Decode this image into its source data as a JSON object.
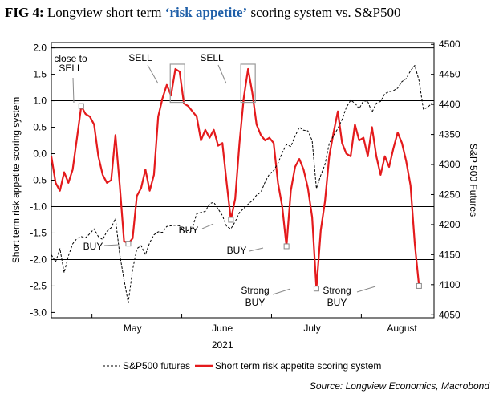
{
  "figure": {
    "number": "FIG 4:",
    "title_pre": "Longview short term ",
    "title_highlight": "‘risk appetite’",
    "title_post": " scoring system vs. S&P500",
    "source": "Source: Longview Economics, Macrobond"
  },
  "chart_data": {
    "type": "line",
    "title": "Longview short term ‘risk appetite’ scoring system vs. S&P500",
    "xlabel": "2021",
    "ylabel_left": "Short term risk appetite scoring system",
    "ylabel_right": "S&P 500 Futures",
    "x_unit": "trading day index (approx.)",
    "x_range": [
      0,
      86
    ],
    "x_tick_labels": [
      {
        "label": "May",
        "x": 19
      },
      {
        "label": "June",
        "x": 40
      },
      {
        "label": "July",
        "x": 61
      },
      {
        "label": "August",
        "x": 82
      }
    ],
    "y_left": {
      "range": [
        -3.1,
        2.1
      ],
      "ticks": [
        "2.0",
        "1.5",
        "1.0",
        "0.5",
        "0.0",
        "-0.5",
        "-1.0",
        "-1.5",
        "-2.0",
        "-2.5",
        "-3.0"
      ]
    },
    "y_right": {
      "range": [
        4045,
        4503
      ],
      "ticks": [
        "4500",
        "4450",
        "4400",
        "4350",
        "4300",
        "4250",
        "4200",
        "4150",
        "4100",
        "4050"
      ]
    },
    "reference_lines": [
      2.0,
      1.0,
      -1.0,
      -2.0
    ],
    "series": [
      {
        "name": "Short term risk appetite scoring system",
        "axis": "left",
        "color": "#e41a1c",
        "style": "solid",
        "points": [
          [
            0,
            -0.05
          ],
          [
            1,
            -0.55
          ],
          [
            2,
            -0.7
          ],
          [
            3,
            -0.35
          ],
          [
            4,
            -0.55
          ],
          [
            5,
            -0.3
          ],
          [
            6,
            0.3
          ],
          [
            7,
            0.9
          ],
          [
            8,
            0.75
          ],
          [
            9,
            0.7
          ],
          [
            10,
            0.55
          ],
          [
            11,
            -0.05
          ],
          [
            12,
            -0.4
          ],
          [
            13,
            -0.55
          ],
          [
            14,
            -0.5
          ],
          [
            15,
            0.35
          ],
          [
            16,
            -0.6
          ],
          [
            17,
            -1.65
          ],
          [
            18,
            -1.7
          ],
          [
            19,
            -1.6
          ],
          [
            20,
            -0.8
          ],
          [
            21,
            -0.65
          ],
          [
            22,
            -0.3
          ],
          [
            23,
            -0.7
          ],
          [
            24,
            -0.4
          ],
          [
            25,
            0.7
          ],
          [
            26,
            1.05
          ],
          [
            27,
            1.3
          ],
          [
            28,
            1.1
          ],
          [
            29,
            1.6
          ],
          [
            30,
            1.55
          ],
          [
            31,
            0.95
          ],
          [
            32,
            0.9
          ],
          [
            33,
            0.8
          ],
          [
            34,
            0.7
          ],
          [
            35,
            0.25
          ],
          [
            36,
            0.45
          ],
          [
            37,
            0.3
          ],
          [
            38,
            0.45
          ],
          [
            39,
            0.15
          ],
          [
            40,
            0.2
          ],
          [
            41,
            -0.55
          ],
          [
            42,
            -1.25
          ],
          [
            43,
            -0.85
          ],
          [
            44,
            0.2
          ],
          [
            45,
            1.05
          ],
          [
            46,
            1.6
          ],
          [
            47,
            1.15
          ],
          [
            48,
            0.55
          ],
          [
            49,
            0.35
          ],
          [
            50,
            0.25
          ],
          [
            51,
            0.3
          ],
          [
            52,
            0.2
          ],
          [
            53,
            -0.55
          ],
          [
            54,
            -1.0
          ],
          [
            55,
            -1.75
          ],
          [
            56,
            -0.7
          ],
          [
            57,
            -0.25
          ],
          [
            58,
            -0.1
          ],
          [
            59,
            -0.3
          ],
          [
            60,
            -0.65
          ],
          [
            61,
            -1.2
          ],
          [
            62,
            -2.55
          ],
          [
            63,
            -1.45
          ],
          [
            64,
            -0.9
          ],
          [
            65,
            -0.05
          ],
          [
            66,
            0.4
          ],
          [
            67,
            0.8
          ],
          [
            68,
            0.2
          ],
          [
            69,
            0.0
          ],
          [
            70,
            -0.05
          ],
          [
            71,
            0.55
          ],
          [
            72,
            0.25
          ],
          [
            73,
            0.3
          ],
          [
            74,
            -0.05
          ],
          [
            75,
            0.5
          ],
          [
            76,
            -0.05
          ],
          [
            77,
            -0.4
          ],
          [
            78,
            -0.05
          ],
          [
            79,
            -0.25
          ],
          [
            80,
            0.1
          ],
          [
            81,
            0.4
          ],
          [
            82,
            0.2
          ],
          [
            83,
            -0.15
          ],
          [
            84,
            -0.6
          ],
          [
            85,
            -1.7
          ],
          [
            86,
            -2.5
          ]
        ]
      },
      {
        "name": "S&P500 futures",
        "axis": "right",
        "color": "#000000",
        "style": "dashed",
        "points": [
          [
            0,
            4150
          ],
          [
            1,
            4138
          ],
          [
            2,
            4160
          ],
          [
            3,
            4120
          ],
          [
            4,
            4148
          ],
          [
            5,
            4168
          ],
          [
            6,
            4177
          ],
          [
            7,
            4180
          ],
          [
            8,
            4178
          ],
          [
            9,
            4185
          ],
          [
            10,
            4193
          ],
          [
            11,
            4180
          ],
          [
            12,
            4175
          ],
          [
            13,
            4189
          ],
          [
            14,
            4195
          ],
          [
            15,
            4210
          ],
          [
            16,
            4150
          ],
          [
            17,
            4108
          ],
          [
            18,
            4070
          ],
          [
            19,
            4125
          ],
          [
            20,
            4160
          ],
          [
            21,
            4165
          ],
          [
            22,
            4150
          ],
          [
            23,
            4170
          ],
          [
            24,
            4183
          ],
          [
            25,
            4188
          ],
          [
            26,
            4187
          ],
          [
            27,
            4197
          ],
          [
            28,
            4198
          ],
          [
            29,
            4199
          ],
          [
            30,
            4198
          ],
          [
            31,
            4189
          ],
          [
            32,
            4190
          ],
          [
            33,
            4195
          ],
          [
            34,
            4218
          ],
          [
            35,
            4220
          ],
          [
            36,
            4222
          ],
          [
            37,
            4235
          ],
          [
            38,
            4237
          ],
          [
            39,
            4226
          ],
          [
            40,
            4215
          ],
          [
            41,
            4197
          ],
          [
            42,
            4193
          ],
          [
            43,
            4205
          ],
          [
            44,
            4220
          ],
          [
            45,
            4227
          ],
          [
            46,
            4234
          ],
          [
            47,
            4240
          ],
          [
            48,
            4249
          ],
          [
            49,
            4254
          ],
          [
            50,
            4271
          ],
          [
            51,
            4284
          ],
          [
            52,
            4290
          ],
          [
            53,
            4302
          ],
          [
            54,
            4320
          ],
          [
            55,
            4333
          ],
          [
            56,
            4330
          ],
          [
            57,
            4347
          ],
          [
            58,
            4362
          ],
          [
            59,
            4357
          ],
          [
            60,
            4356
          ],
          [
            61,
            4340
          ],
          [
            62,
            4260
          ],
          [
            63,
            4282
          ],
          [
            64,
            4300
          ],
          [
            65,
            4335
          ],
          [
            66,
            4348
          ],
          [
            67,
            4360
          ],
          [
            68,
            4375
          ],
          [
            69,
            4395
          ],
          [
            70,
            4407
          ],
          [
            71,
            4402
          ],
          [
            72,
            4393
          ],
          [
            73,
            4406
          ],
          [
            74,
            4405
          ],
          [
            75,
            4387
          ],
          [
            76,
            4402
          ],
          [
            77,
            4405
          ],
          [
            78,
            4418
          ],
          [
            79,
            4421
          ],
          [
            80,
            4423
          ],
          [
            81,
            4427
          ],
          [
            82,
            4438
          ],
          [
            83,
            4443
          ],
          [
            84,
            4456
          ],
          [
            85,
            4465
          ],
          [
            86,
            4440
          ],
          [
            87,
            4392
          ],
          [
            88,
            4395
          ],
          [
            89,
            4402
          ]
        ]
      }
    ],
    "annotations": [
      {
        "text": [
          "close to",
          "SELL"
        ],
        "x": 7,
        "y": 0.9,
        "marker": "square"
      },
      {
        "text": [
          "SELL"
        ],
        "x": 29.5,
        "y": 1.3,
        "marker": "box"
      },
      {
        "text": [
          "SELL"
        ],
        "x": 46,
        "y": 1.3,
        "marker": "box"
      },
      {
        "text": [
          "BUY"
        ],
        "x": 18,
        "y": -1.7,
        "marker": "square"
      },
      {
        "text": [
          "BUY"
        ],
        "x": 42,
        "y": -1.25,
        "marker": "square"
      },
      {
        "text": [
          "BUY"
        ],
        "x": 55,
        "y": -1.75,
        "marker": "square"
      },
      {
        "text": [
          "Strong",
          "BUY"
        ],
        "x": 62,
        "y": -2.55,
        "marker": "square"
      },
      {
        "text": [
          "Strong",
          "BUY"
        ],
        "x": 86,
        "y": -2.5,
        "marker": "square"
      }
    ],
    "legend": [
      {
        "label": "S&P500 futures",
        "style": "dashed",
        "color": "#000000"
      },
      {
        "label": "Short term risk appetite scoring system",
        "style": "solid",
        "color": "#e41a1c"
      }
    ],
    "legend_position": "bottom"
  }
}
